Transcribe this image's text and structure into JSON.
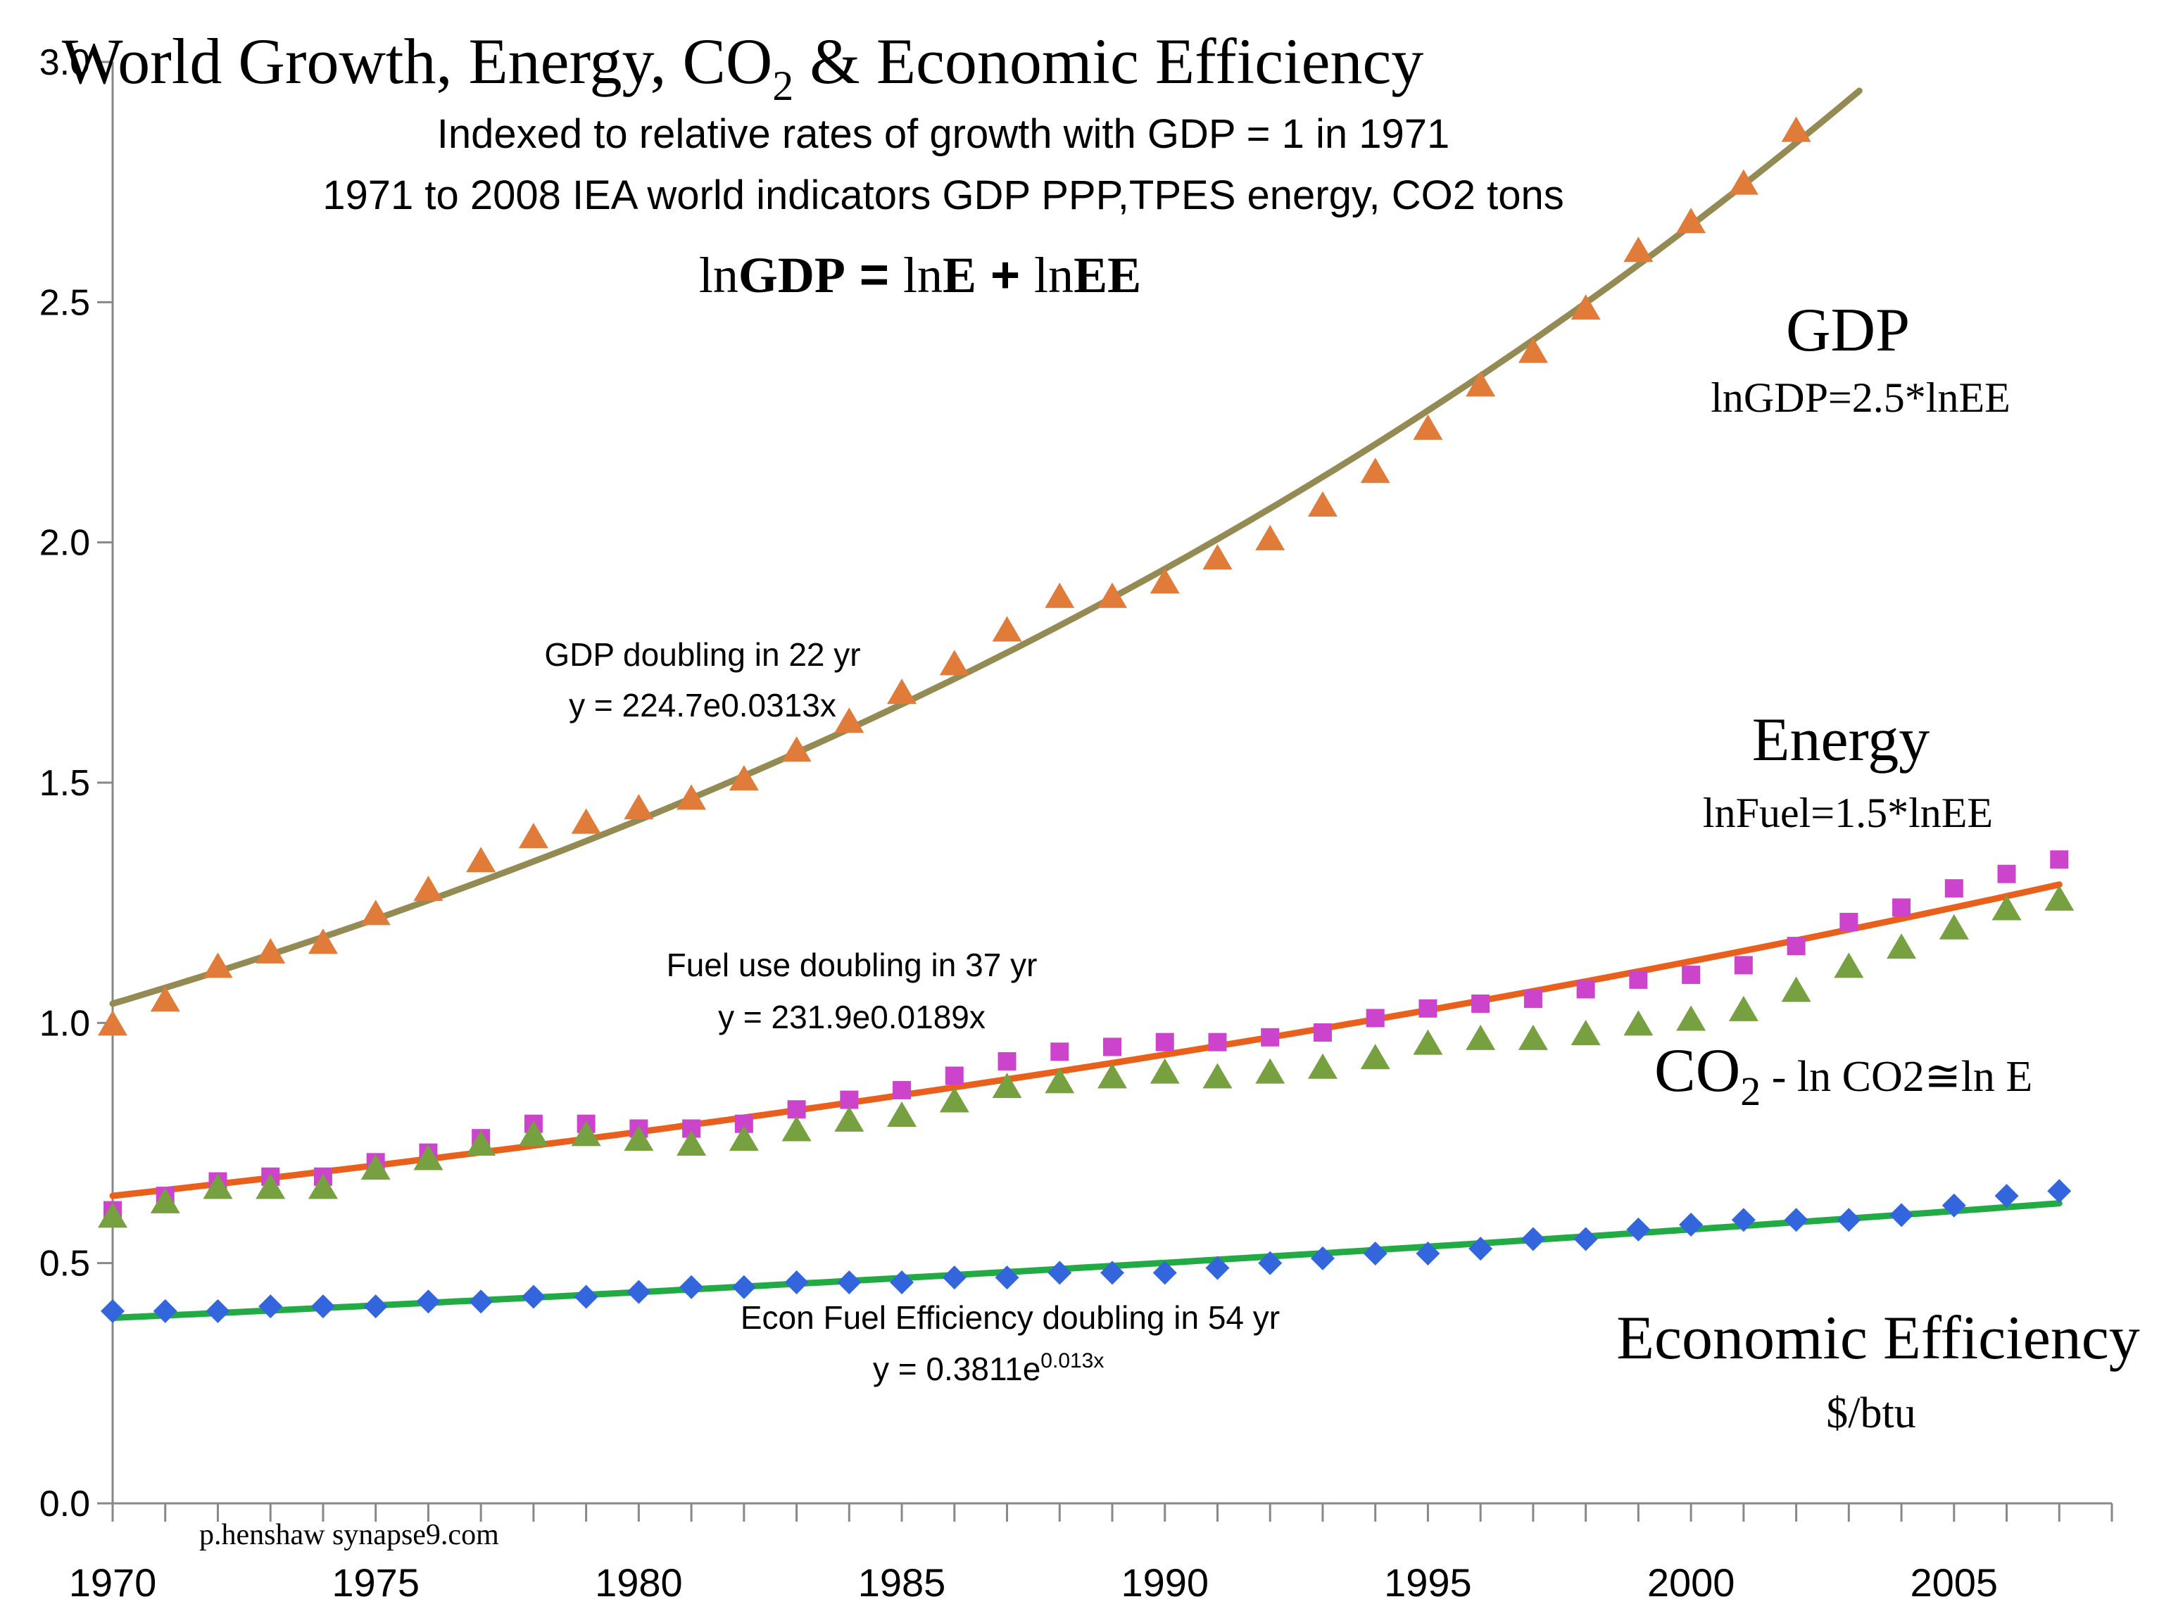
{
  "chart_data": {
    "type": "scatter",
    "title": "World Growth, Energy, CO",
    "title_sub": "2",
    "title_tail": " & Economic Efficiency",
    "subtitle_1": "Indexed to relative rates of growth with GDP = 1 in 1971",
    "subtitle_2": "1971 to 2008 IEA world indicators GDP PPP,TPES energy, CO2 tons",
    "equation": {
      "ln1": "ln",
      "gdp": "GDP",
      "eq": " = ",
      "ln2": "ln",
      "e": "E",
      "plus": " + ",
      "ln3": "ln",
      "ee": "EE"
    },
    "xlim": [
      1970,
      2008
    ],
    "ylim": [
      0,
      3.0
    ],
    "x_ticks": [
      "1970",
      "1975",
      "1980",
      "1985",
      "1990",
      "1995",
      "2000",
      "2005"
    ],
    "y_ticks": [
      "0.0",
      "0.5",
      "1.0",
      "1.5",
      "2.0",
      "2.5",
      "3.0"
    ],
    "grid": false,
    "colors": {
      "gdp_marker": "#E07B39",
      "gdp_trend": "#948A54",
      "energy_marker": "#CC44CC",
      "energy_trend": "#E8601C",
      "co2_marker": "#77A040",
      "ee_marker": "#3366DD",
      "ee_trend": "#22AA44"
    },
    "series": [
      {
        "name": "GDP",
        "marker": "triangle",
        "x": [
          1970,
          1971,
          1972,
          1973,
          1974,
          1975,
          1976,
          1977,
          1978,
          1979,
          1980,
          1981,
          1982,
          1983,
          1984,
          1985,
          1986,
          1987,
          1988,
          1989,
          1990,
          1991,
          1992,
          1993,
          1994,
          1995,
          1996,
          1997,
          1998,
          1999,
          2000,
          2001,
          2002
        ],
        "y": [
          1.0,
          1.05,
          1.12,
          1.15,
          1.17,
          1.23,
          1.28,
          1.34,
          1.39,
          1.42,
          1.45,
          1.47,
          1.51,
          1.57,
          1.63,
          1.69,
          1.75,
          1.82,
          1.89,
          1.89,
          1.92,
          1.97,
          2.01,
          2.08,
          2.15,
          2.24,
          2.33,
          2.4,
          2.49,
          2.61,
          2.67,
          2.75,
          2.86
        ]
      },
      {
        "name": "Energy",
        "marker": "square",
        "x": [
          1970,
          1971,
          1972,
          1973,
          1974,
          1975,
          1976,
          1977,
          1978,
          1979,
          1980,
          1981,
          1982,
          1983,
          1984,
          1985,
          1986,
          1987,
          1988,
          1989,
          1990,
          1991,
          1992,
          1993,
          1994,
          1995,
          1996,
          1997,
          1998,
          1999,
          2000,
          2001,
          2002,
          2003,
          2004,
          2005,
          2006,
          2007
        ],
        "y": [
          0.61,
          0.64,
          0.67,
          0.68,
          0.68,
          0.71,
          0.73,
          0.76,
          0.79,
          0.79,
          0.78,
          0.78,
          0.79,
          0.82,
          0.84,
          0.86,
          0.89,
          0.92,
          0.94,
          0.95,
          0.96,
          0.96,
          0.97,
          0.98,
          1.01,
          1.03,
          1.04,
          1.05,
          1.07,
          1.09,
          1.1,
          1.12,
          1.16,
          1.21,
          1.24,
          1.28,
          1.31,
          1.34
        ]
      },
      {
        "name": "CO2",
        "marker": "triangle",
        "x": [
          1970,
          1971,
          1972,
          1973,
          1974,
          1975,
          1976,
          1977,
          1978,
          1979,
          1980,
          1981,
          1982,
          1983,
          1984,
          1985,
          1986,
          1987,
          1988,
          1989,
          1990,
          1991,
          1992,
          1993,
          1994,
          1995,
          1996,
          1997,
          1998,
          1999,
          2000,
          2001,
          2002,
          2003,
          2004,
          2005,
          2006,
          2007
        ],
        "y": [
          0.6,
          0.63,
          0.66,
          0.66,
          0.66,
          0.7,
          0.72,
          0.75,
          0.77,
          0.77,
          0.76,
          0.75,
          0.76,
          0.78,
          0.8,
          0.81,
          0.84,
          0.87,
          0.88,
          0.89,
          0.9,
          0.89,
          0.9,
          0.91,
          0.93,
          0.96,
          0.97,
          0.97,
          0.98,
          1.0,
          1.01,
          1.03,
          1.07,
          1.12,
          1.16,
          1.2,
          1.24,
          1.26
        ]
      },
      {
        "name": "Economic Efficiency",
        "marker": "diamond",
        "x": [
          1970,
          1971,
          1972,
          1973,
          1974,
          1975,
          1976,
          1977,
          1978,
          1979,
          1980,
          1981,
          1982,
          1983,
          1984,
          1985,
          1986,
          1987,
          1988,
          1989,
          1990,
          1991,
          1992,
          1993,
          1994,
          1995,
          1996,
          1997,
          1998,
          1999,
          2000,
          2001,
          2002,
          2003,
          2004,
          2005,
          2006,
          2007
        ],
        "y": [
          0.4,
          0.4,
          0.4,
          0.41,
          0.41,
          0.41,
          0.42,
          0.42,
          0.43,
          0.43,
          0.44,
          0.45,
          0.45,
          0.46,
          0.46,
          0.46,
          0.47,
          0.47,
          0.48,
          0.48,
          0.48,
          0.49,
          0.5,
          0.51,
          0.52,
          0.52,
          0.53,
          0.55,
          0.55,
          0.57,
          0.58,
          0.59,
          0.59,
          0.59,
          0.6,
          0.62,
          0.64,
          0.65
        ]
      }
    ],
    "trendlines": [
      {
        "for": "GDP",
        "kind": "exponential",
        "a": 1.04,
        "b": 0.0313,
        "x0": 1970,
        "x_start": 1970,
        "x_end": 2003.2
      },
      {
        "for": "Energy",
        "kind": "exponential",
        "a": 0.64,
        "b": 0.0189,
        "x0": 1970,
        "x_start": 1970,
        "x_end": 2007
      },
      {
        "for": "Economic Efficiency",
        "kind": "exponential",
        "a": 0.386,
        "b": 0.013,
        "x0": 1970,
        "x_start": 1970,
        "x_end": 2007
      }
    ],
    "labels": {
      "gdp": "GDP",
      "gdp_rel": "lnGDP=2.5*lnEE",
      "energy": "Energy",
      "energy_rel": "lnFuel=1.5*lnEE",
      "co2_main": "CO",
      "co2_sub": "2",
      "co2_rel": " - ln CO2≅ln E",
      "ee": "Economic Efficiency",
      "ee_unit": "$/btu"
    },
    "annotations": {
      "gdp_doubling": "GDP  doubling in 22 yr",
      "gdp_eq": "y = 224.7e0.0313x",
      "fuel_doubling": "Fuel use doubling in 37 yr",
      "fuel_eq": "y = 231.9e0.0189x",
      "ee_doubling": "Econ Fuel Efficiency doubling in 54 yr",
      "ee_eq_base": "y = 0.3811e",
      "ee_eq_exp": "0.013x"
    },
    "credit": "p.henshaw synapse9.com"
  }
}
